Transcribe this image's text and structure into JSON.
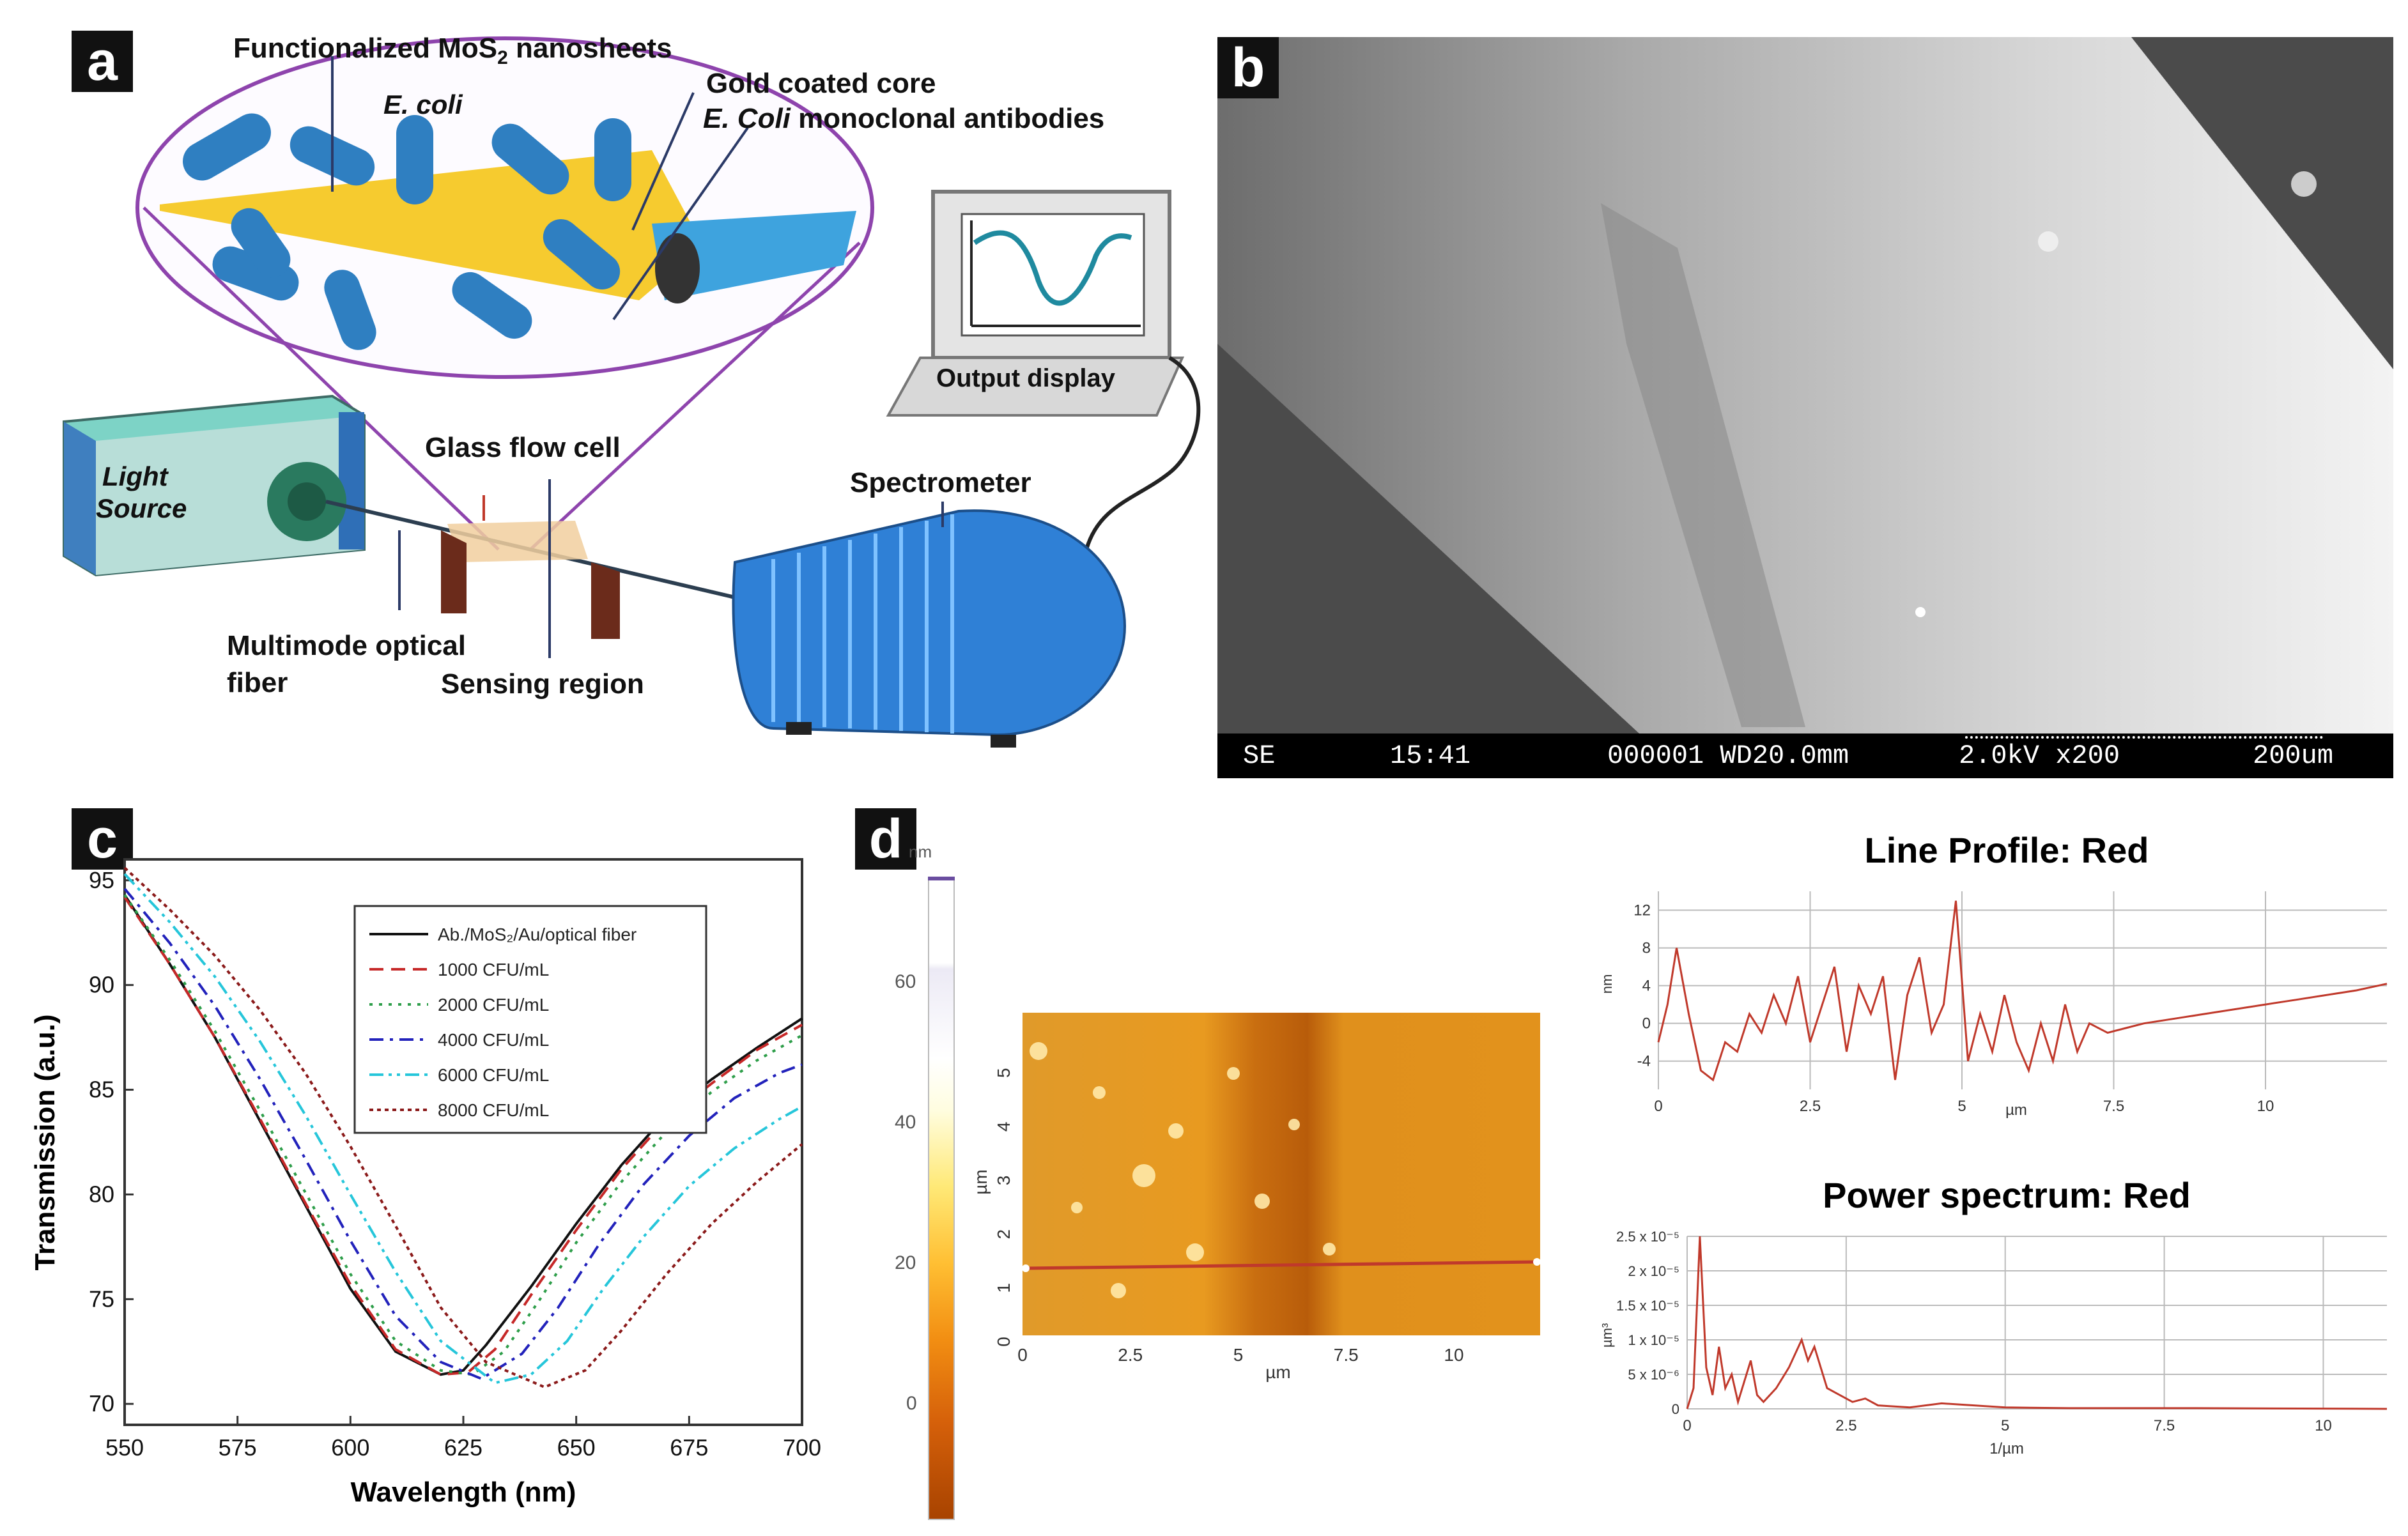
{
  "panels": {
    "a": "a",
    "b": "b",
    "c": "c",
    "d": "d"
  },
  "panel_a": {
    "functionalized": "Functionalized MoS",
    "functionalized_sub": "2",
    "functionalized_tail": " nanosheets",
    "ecoli": "E. coli",
    "gold_core": "Gold coated core",
    "antibodies_italic": "E. Coli",
    "antibodies_rest": " monoclonal antibodies",
    "output_display": "Output display",
    "light_line1": "Light",
    "light_line2": "Source",
    "glass_flow_cell": "Glass flow cell",
    "spectrometer": "Spectrometer",
    "multimode_line1": "Multimode optical",
    "multimode_line2": "fiber",
    "sensing_region": "Sensing region"
  },
  "panel_b": {
    "bar": {
      "mode": "SE",
      "time": "15:41",
      "info": "000001 WD20.0mm",
      "kv": "2.0kV x200",
      "scale": "200um"
    }
  },
  "chart_data": [
    {
      "type": "line",
      "panel": "c",
      "xlabel": "Wavelength (nm)",
      "ylabel": "Transmission (a.u.)",
      "xlim": [
        550,
        700
      ],
      "ylim": [
        69,
        96
      ],
      "xticks": [
        550,
        575,
        600,
        625,
        650,
        675,
        700
      ],
      "yticks": [
        70,
        75,
        80,
        85,
        90,
        95
      ],
      "legend_position": "top-right",
      "series": [
        {
          "name": "Ab./MoS₂/Au/optical fiber",
          "color": "#111111",
          "dash": "solid",
          "x": [
            550,
            560,
            570,
            580,
            590,
            600,
            610,
            620,
            625,
            630,
            640,
            650,
            660,
            670,
            680,
            690,
            700
          ],
          "y": [
            94.3,
            91.0,
            87.5,
            83.5,
            79.5,
            75.5,
            72.5,
            71.4,
            71.6,
            72.8,
            75.6,
            78.6,
            81.4,
            83.8,
            85.5,
            87.0,
            88.4
          ]
        },
        {
          "name": "1000 CFU/mL",
          "color": "#c62828",
          "dash": "dashed",
          "x": [
            550,
            560,
            570,
            580,
            590,
            600,
            610,
            620,
            626,
            632,
            640,
            650,
            660,
            670,
            680,
            690,
            700
          ],
          "y": [
            94.2,
            91.0,
            87.5,
            83.6,
            79.6,
            75.7,
            72.6,
            71.4,
            71.5,
            72.6,
            75.2,
            78.3,
            81.2,
            83.6,
            85.3,
            86.9,
            88.1
          ]
        },
        {
          "name": "2000 CFU/mL",
          "color": "#2e9e4a",
          "dash": "dotted",
          "x": [
            550,
            560,
            570,
            580,
            590,
            600,
            610,
            620,
            627,
            634,
            642,
            650,
            660,
            670,
            680,
            690,
            700
          ],
          "y": [
            94.3,
            91.2,
            87.8,
            84.0,
            80.1,
            76.2,
            73.0,
            71.6,
            71.4,
            72.5,
            75.0,
            77.7,
            80.6,
            83.0,
            84.9,
            86.4,
            87.6
          ]
        },
        {
          "name": "4000 CFU/mL",
          "color": "#2222bb",
          "dash": "dashdot",
          "x": [
            550,
            560,
            570,
            580,
            590,
            600,
            610,
            620,
            629,
            638,
            646,
            655,
            665,
            675,
            685,
            695,
            700
          ],
          "y": [
            94.6,
            92.0,
            89.0,
            85.5,
            81.7,
            77.8,
            74.2,
            72.0,
            71.2,
            72.4,
            74.6,
            77.6,
            80.5,
            82.8,
            84.6,
            85.8,
            86.2
          ]
        },
        {
          "name": "6000 CFU/mL",
          "color": "#26c6da",
          "dash": "dashdotdot",
          "x": [
            550,
            560,
            570,
            580,
            590,
            600,
            610,
            620,
            632,
            640,
            648,
            656,
            665,
            675,
            685,
            695,
            700
          ],
          "y": [
            95.3,
            93.0,
            90.4,
            87.3,
            83.8,
            80.0,
            76.3,
            73.0,
            71.0,
            71.4,
            73.0,
            75.5,
            78.0,
            80.4,
            82.2,
            83.6,
            84.2
          ]
        },
        {
          "name": "8000 CFU/mL",
          "color": "#8b1a1a",
          "dash": "dense-dotted",
          "x": [
            550,
            560,
            570,
            580,
            590,
            600,
            610,
            620,
            630,
            643,
            652,
            660,
            670,
            680,
            690,
            700
          ],
          "y": [
            95.6,
            93.6,
            91.4,
            88.8,
            85.8,
            82.3,
            78.5,
            74.6,
            72.0,
            70.8,
            71.6,
            73.5,
            76.2,
            78.6,
            80.6,
            82.4
          ]
        }
      ]
    },
    {
      "type": "heatmap",
      "panel": "d-afm",
      "xlabel": "µm",
      "ylabel": "µm",
      "xlim": [
        0,
        12
      ],
      "ylim": [
        0,
        6
      ],
      "xticks": [
        "0",
        "2.5",
        "5",
        "7.5",
        "10"
      ],
      "yticks": [
        "0",
        "1",
        "2",
        "3",
        "4",
        "5"
      ],
      "colorbar": {
        "label": "nm",
        "ticks": [
          "0",
          "20",
          "40",
          "60"
        ],
        "range": [
          -15,
          75
        ]
      }
    },
    {
      "type": "line",
      "panel": "d-line-profile",
      "title": "Line Profile: Red",
      "xlabel": "µm",
      "ylabel": "nm",
      "xlim": [
        0,
        12
      ],
      "ylim": [
        -7,
        14
      ],
      "xticks": [
        "0",
        "2.5",
        "5",
        "7.5",
        "10"
      ],
      "yticks": [
        "12",
        "8",
        "4",
        "0",
        "-4"
      ],
      "series": [
        {
          "name": "Red",
          "color": "#c0392b",
          "x": [
            0,
            0.15,
            0.3,
            0.5,
            0.7,
            0.9,
            1.1,
            1.3,
            1.5,
            1.7,
            1.9,
            2.1,
            2.3,
            2.5,
            2.7,
            2.9,
            3.1,
            3.3,
            3.5,
            3.7,
            3.9,
            4.1,
            4.3,
            4.5,
            4.7,
            4.9,
            5.1,
            5.3,
            5.5,
            5.7,
            5.9,
            6.1,
            6.3,
            6.5,
            6.7,
            6.9,
            7.1,
            7.4,
            7.7,
            8,
            8.5,
            9,
            9.5,
            10,
            10.5,
            11,
            11.5,
            12
          ],
          "y": [
            -2,
            2,
            8,
            1,
            -5,
            -6,
            -2,
            -3,
            1,
            -1,
            3,
            0,
            5,
            -2,
            2,
            6,
            -3,
            4,
            1,
            5,
            -6,
            3,
            7,
            -1,
            2,
            13,
            -4,
            1,
            -3,
            3,
            -2,
            -5,
            0,
            -4,
            2,
            -3,
            0,
            -1,
            -0.5,
            0,
            0.5,
            1,
            1.5,
            2,
            2.5,
            3,
            3.5,
            4.2
          ]
        }
      ]
    },
    {
      "type": "line",
      "panel": "d-power-spectrum",
      "title": "Power spectrum: Red",
      "xlabel": "1/µm",
      "ylabel": "µm³",
      "xlim": [
        0,
        11
      ],
      "ylim": [
        0,
        2.5
      ],
      "xticks": [
        "0",
        "2.5",
        "5",
        "7.5",
        "10"
      ],
      "yticks": [
        "2.5 x 10⁻⁵",
        "2 x 10⁻⁵",
        "1.5 x 10⁻⁵",
        "1 x 10⁻⁵",
        "5 x 10⁻⁶",
        "0"
      ],
      "series": [
        {
          "name": "Red",
          "color": "#c0392b",
          "x": [
            0,
            0.1,
            0.2,
            0.3,
            0.4,
            0.5,
            0.6,
            0.7,
            0.8,
            1,
            1.1,
            1.2,
            1.4,
            1.6,
            1.8,
            1.9,
            2,
            2.2,
            2.4,
            2.6,
            2.8,
            3,
            3.5,
            4,
            5,
            6,
            8,
            11
          ],
          "y": [
            0,
            0.3,
            2.5,
            0.6,
            0.2,
            0.9,
            0.3,
            0.5,
            0.1,
            0.7,
            0.2,
            0.1,
            0.3,
            0.6,
            1.0,
            0.7,
            0.9,
            0.3,
            0.2,
            0.1,
            0.15,
            0.05,
            0.02,
            0.08,
            0.02,
            0.01,
            0.01,
            0.0
          ]
        }
      ]
    }
  ]
}
